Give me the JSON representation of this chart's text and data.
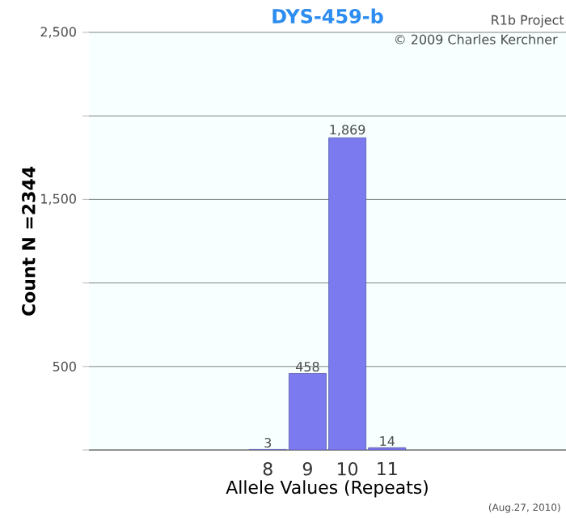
{
  "chart_data": {
    "type": "bar",
    "title": "DYS-459-b",
    "xlabel": "Allele Values (Repeats)",
    "ylabel": "Count N =2344",
    "categories": [
      null,
      null,
      null,
      null,
      "8",
      "9",
      "10",
      "11",
      null,
      null,
      null,
      null
    ],
    "values": [
      null,
      null,
      null,
      null,
      3,
      458,
      1869,
      14,
      null,
      null,
      null,
      null
    ],
    "value_labels": [
      null,
      null,
      null,
      null,
      "3",
      "458",
      "1,869",
      "14",
      null,
      null,
      null,
      null
    ],
    "color": "#7b7bef",
    "ylim": [
      0,
      2500
    ],
    "yticks": [
      {
        "value": 0,
        "label": null
      },
      500,
      {
        "value": 1000,
        "label": null
      },
      {
        "value": 1500,
        "label": "1,500"
      },
      {
        "value": 2000,
        "label": null
      },
      {
        "value": 2500,
        "label": "2,500"
      }
    ],
    "grid": "y",
    "annotations": [
      "R1b Project",
      "© 2009 Charles Kerchner",
      "(Aug.27, 2010)"
    ]
  }
}
